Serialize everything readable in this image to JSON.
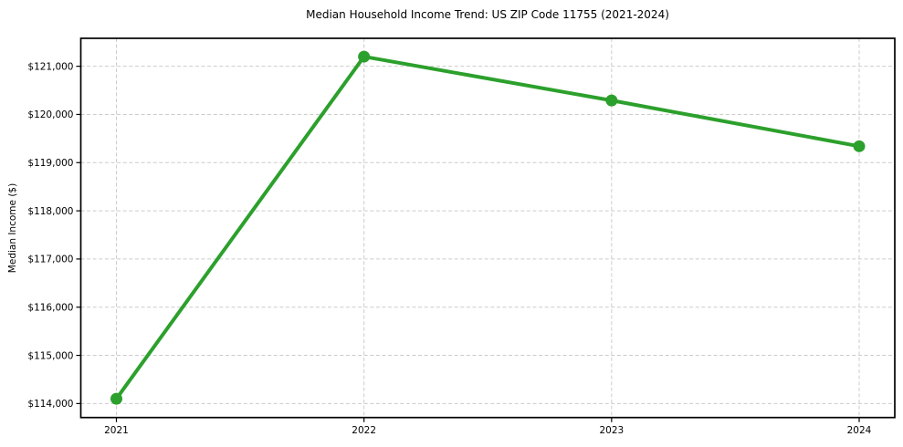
{
  "chart_data": {
    "type": "line",
    "title": "Median Household Income Trend: US ZIP Code 11755 (2021-2024)",
    "xlabel": "",
    "ylabel": "Median Income ($)",
    "categories": [
      "2021",
      "2022",
      "2023",
      "2024"
    ],
    "series": [
      {
        "name": "Median Household Income",
        "color": "#2ca02c",
        "values": [
          114100,
          121200,
          120290,
          119340
        ]
      }
    ],
    "yticks": [
      114000,
      115000,
      116000,
      117000,
      118000,
      119000,
      120000,
      121000
    ],
    "ytick_labels": [
      "$114,000",
      "$115,000",
      "$116,000",
      "$117,000",
      "$118,000",
      "$119,000",
      "$120,000",
      "$121,000"
    ],
    "ylim": [
      113710,
      121580
    ],
    "grid": true,
    "grid_style": "dashed",
    "grid_color": "#cccccc",
    "axis_color": "#000000",
    "background_color": "#ffffff",
    "legend_position": "none",
    "marker": "circle"
  }
}
